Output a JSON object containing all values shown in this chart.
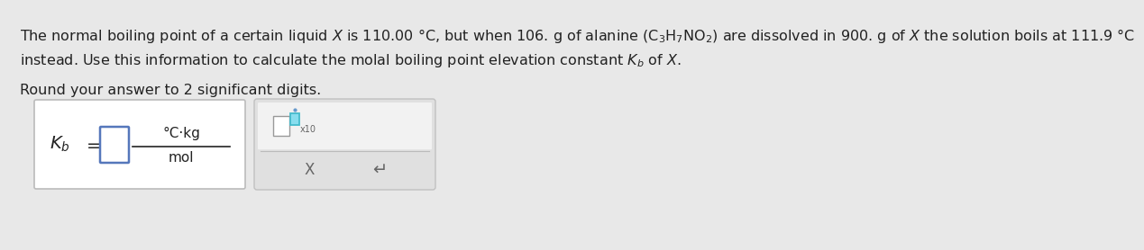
{
  "page_bg": "#e8e8e8",
  "text_bg": "#e8e8e8",
  "text_color": "#222222",
  "line1": "The normal boiling point of a certain liquid $X$ is 110.00 °C, but when 106. g of alanine (C$_3$H$_7$NO$_2$) are dissolved in 900. g of $X$ the solution boils at 111.9 °C",
  "line2": "instead. Use this information to calculate the molal boiling point elevation constant $K_b$ of $X$.",
  "line3": "Round your answer to 2 significant digits.",
  "numerator": "°C·kg",
  "denominator": "mol",
  "box1_bg": "#ffffff",
  "box1_edge": "#bbbbbb",
  "input_edge": "#5577bb",
  "box2_bg": "#e0e0e0",
  "box2_upper_bg": "#f2f2f2",
  "box2_edge": "#c0c0c0",
  "sq1_edge": "#999999",
  "sq2_edge": "#44bbcc",
  "sq2_face": "#88ddee",
  "font_size": 11.5
}
